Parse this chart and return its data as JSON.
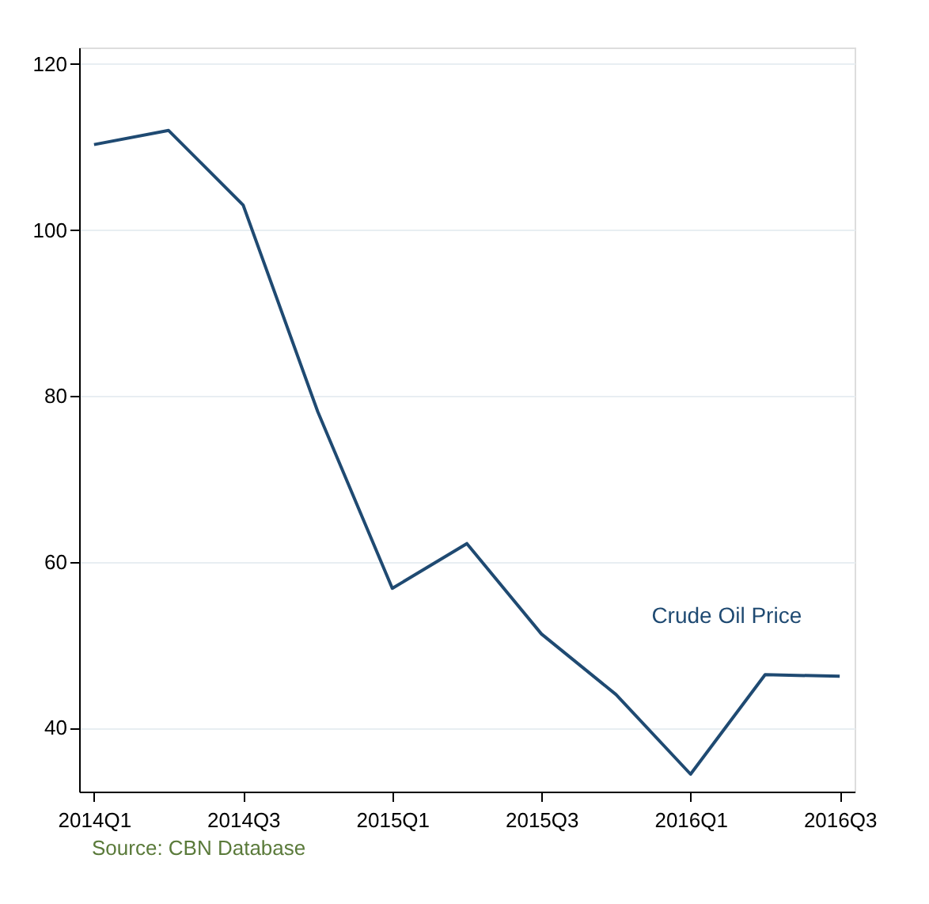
{
  "chart_data": {
    "type": "line",
    "categories": [
      "2014Q1",
      null,
      "2014Q3",
      null,
      "2015Q1",
      null,
      "2015Q3",
      null,
      "2016Q1",
      null,
      "2016Q3"
    ],
    "series": [
      {
        "name": "Crude Oil Price",
        "color": "#1f4a72",
        "values": [
          110.3,
          112.0,
          103.0,
          78.1,
          56.8,
          62.2,
          51.3,
          44.0,
          34.4,
          46.4,
          46.2
        ]
      }
    ],
    "ylim": [
      32.3,
      122
    ],
    "yticks": [
      40,
      60,
      80,
      100,
      120
    ],
    "grid": "y",
    "legend": false,
    "marker": "none",
    "line_style": "solid",
    "annotations": [
      "Source: CBN Database"
    ]
  }
}
